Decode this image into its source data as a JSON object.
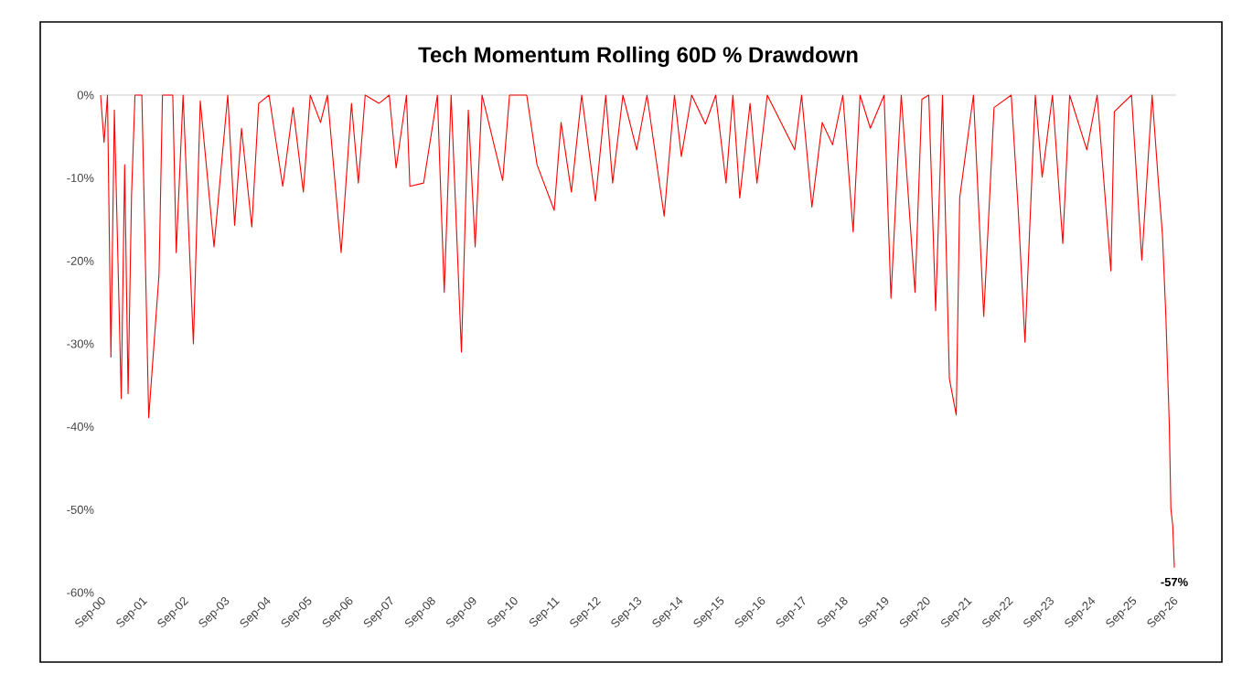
{
  "chart_data": {
    "type": "line",
    "title": "Tech Momentum Rolling 60D % Drawdown",
    "x": [
      "2000-09",
      "2000-10",
      "2000-11",
      "2000-12",
      "2001-01",
      "2001-03",
      "2001-04",
      "2001-05",
      "2001-06",
      "2001-07",
      "2001-09",
      "2001-11",
      "2002-02",
      "2002-03",
      "2002-06",
      "2002-07",
      "2002-09",
      "2002-12",
      "2003-02",
      "2003-06",
      "2003-10",
      "2003-12",
      "2004-02",
      "2004-05",
      "2004-07",
      "2004-10",
      "2005-02",
      "2005-05",
      "2005-08",
      "2005-10",
      "2006-01",
      "2006-03",
      "2006-07",
      "2006-10",
      "2006-12",
      "2007-02",
      "2007-06",
      "2007-09",
      "2007-11",
      "2008-02",
      "2008-03",
      "2008-07",
      "2008-11",
      "2009-01",
      "2009-03",
      "2009-06",
      "2009-08",
      "2009-10",
      "2009-12",
      "2010-06",
      "2010-08",
      "2011-01",
      "2011-04",
      "2011-09",
      "2011-11",
      "2012-02",
      "2012-05",
      "2012-09",
      "2012-12",
      "2013-02",
      "2013-05",
      "2013-09",
      "2013-12",
      "2014-05",
      "2014-08",
      "2014-10",
      "2015-01",
      "2015-05",
      "2015-08",
      "2015-11",
      "2016-01",
      "2016-03",
      "2016-06",
      "2016-08",
      "2016-11",
      "2017-07",
      "2017-09",
      "2017-12",
      "2018-03",
      "2018-06",
      "2018-09",
      "2018-12",
      "2019-02",
      "2019-05",
      "2019-09",
      "2019-11",
      "2020-01",
      "2020-02",
      "2020-06",
      "2020-08",
      "2020-10",
      "2020-12",
      "2021-02",
      "2021-04",
      "2021-06",
      "2021-07",
      "2021-11",
      "2022-02",
      "2022-05",
      "2022-10",
      "2022-12",
      "2023-02",
      "2023-05",
      "2023-07",
      "2023-10",
      "2024-01",
      "2024-03",
      "2024-08",
      "2024-11",
      "2025-03",
      "2025-04",
      "2025-09",
      "2025-12",
      "2026-03",
      "2026-05",
      "2026-06",
      "2026-07",
      "2026-08-01",
      "2026-08-15",
      "2026-09-01",
      "2026-09-15"
    ],
    "values": [
      0,
      -5.7,
      0,
      -31.6,
      -1.8,
      -36.6,
      -8.4,
      -36,
      -12,
      0,
      0,
      -38.9,
      -21.6,
      0,
      0,
      -19,
      0,
      -30,
      -0.7,
      -18.3,
      0,
      -15.7,
      -4,
      -15.9,
      -1,
      0,
      -11,
      -1.5,
      -11.7,
      0,
      -3.3,
      0,
      -19,
      -1,
      -10.6,
      0,
      -1,
      0,
      -8.8,
      0,
      -11,
      -10.6,
      0,
      -23.8,
      0,
      -31,
      -1.8,
      -18.3,
      0,
      -10.3,
      0,
      0,
      -8.4,
      -13.9,
      -3.3,
      -11.7,
      0,
      -12.8,
      0,
      -10.6,
      0,
      -6.6,
      0,
      -14.6,
      0,
      -7.4,
      0,
      -3.5,
      0,
      -10.6,
      0,
      -12.4,
      -1,
      -10.6,
      0,
      -6.6,
      0,
      -13.5,
      -3.3,
      -6,
      0,
      -16.5,
      0,
      -4,
      0,
      -24.5,
      -7.7,
      0,
      -23.8,
      -0.5,
      0,
      -26,
      0,
      -34.2,
      -38.6,
      -12.4,
      0,
      -26.7,
      -1.5,
      0,
      -13.6,
      -29.8,
      0,
      -9.9,
      0,
      -17.9,
      0,
      -6.6,
      0,
      -21.2,
      -2,
      0,
      -19.9,
      0,
      -11.5,
      -16.8,
      -26.7,
      -39.7,
      -49.9,
      -51.9,
      -57
    ],
    "color": "#ff0000",
    "xlim": [
      "2000-09",
      "2026-10"
    ],
    "xticks": [
      {
        "value": "2000-09",
        "label": "Sep-00"
      },
      {
        "value": "2001-09",
        "label": "Sep-01"
      },
      {
        "value": "2002-09",
        "label": "Sep-02"
      },
      {
        "value": "2003-09",
        "label": "Sep-03"
      },
      {
        "value": "2004-09",
        "label": "Sep-04"
      },
      {
        "value": "2005-09",
        "label": "Sep-05"
      },
      {
        "value": "2006-09",
        "label": "Sep-06"
      },
      {
        "value": "2007-09",
        "label": "Sep-07"
      },
      {
        "value": "2008-09",
        "label": "Sep-08"
      },
      {
        "value": "2009-09",
        "label": "Sep-09"
      },
      {
        "value": "2010-09",
        "label": "Sep-10"
      },
      {
        "value": "2011-09",
        "label": "Sep-11"
      },
      {
        "value": "2012-09",
        "label": "Sep-12"
      },
      {
        "value": "2013-09",
        "label": "Sep-13"
      },
      {
        "value": "2014-09",
        "label": "Sep-14"
      },
      {
        "value": "2015-09",
        "label": "Sep-15"
      },
      {
        "value": "2016-09",
        "label": "Sep-16"
      },
      {
        "value": "2017-09",
        "label": "Sep-17"
      },
      {
        "value": "2018-09",
        "label": "Sep-18"
      },
      {
        "value": "2019-09",
        "label": "Sep-19"
      },
      {
        "value": "2020-09",
        "label": "Sep-20"
      },
      {
        "value": "2021-09",
        "label": "Sep-21"
      },
      {
        "value": "2022-09",
        "label": "Sep-22"
      },
      {
        "value": "2023-09",
        "label": "Sep-23"
      },
      {
        "value": "2024-09",
        "label": "Sep-24"
      },
      {
        "value": "2025-09",
        "label": "Sep-25"
      },
      {
        "value": "2026-09",
        "label": "Sep-26"
      }
    ],
    "ylim": [
      -60,
      0
    ],
    "yticks": [
      {
        "value": 0,
        "label": "0%"
      },
      {
        "value": -10,
        "label": "-10%"
      },
      {
        "value": -20,
        "label": "-20%"
      },
      {
        "value": -30,
        "label": "-30%"
      },
      {
        "value": -40,
        "label": "-40%"
      },
      {
        "value": -50,
        "label": "-50%"
      },
      {
        "value": -60,
        "label": "-60%"
      }
    ],
    "annotations": [
      {
        "text": "-57%",
        "x": "2026-09-15",
        "y": -57
      }
    ]
  }
}
